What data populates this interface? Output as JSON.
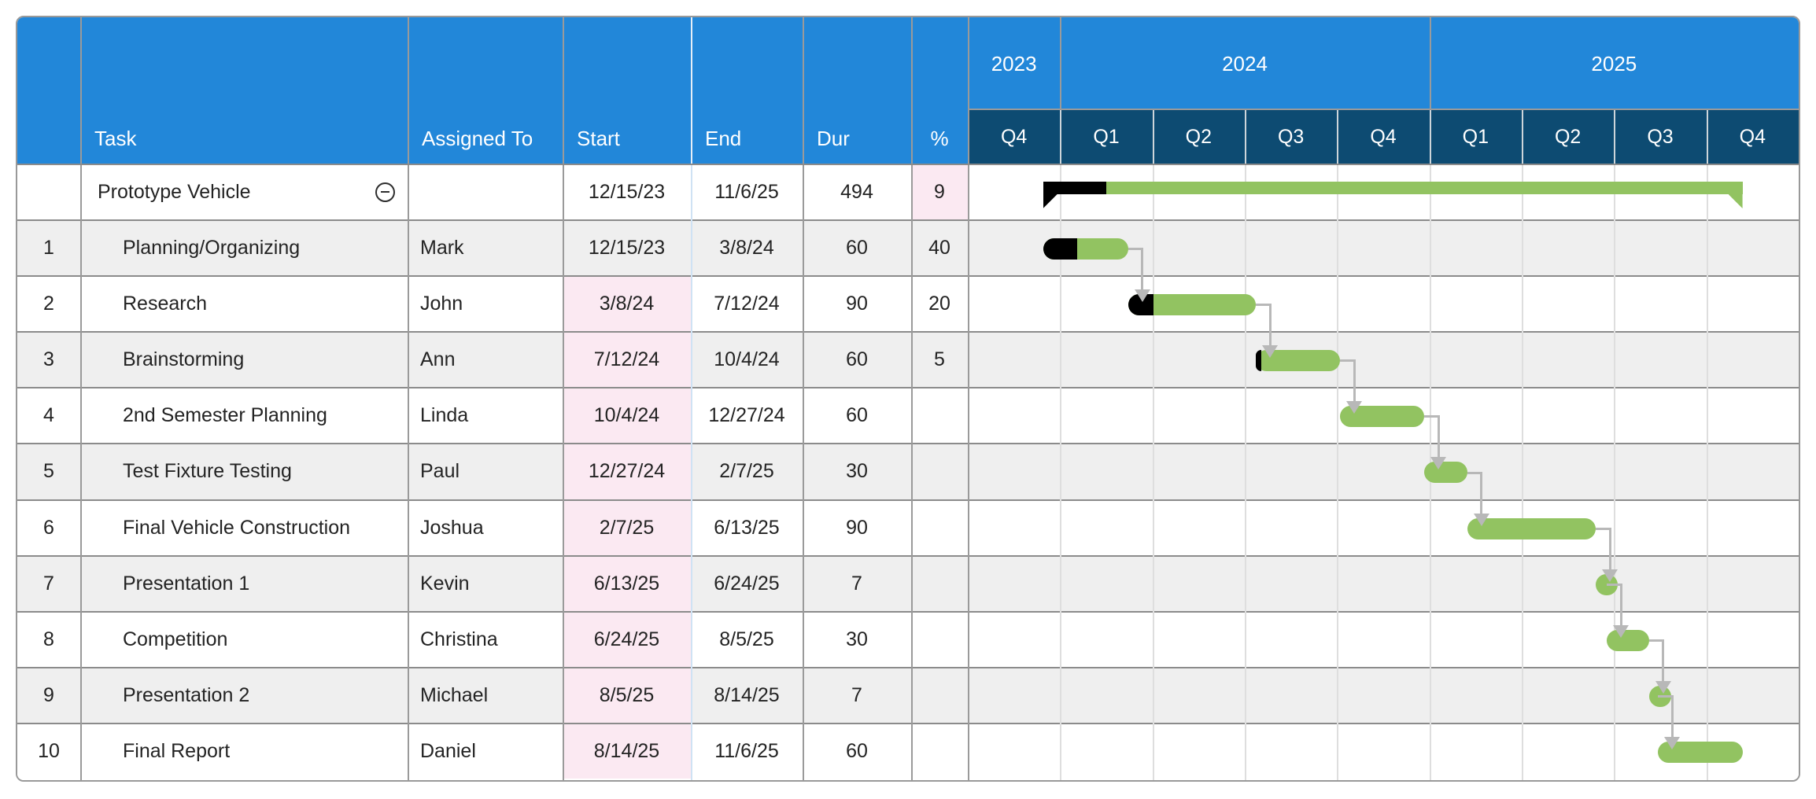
{
  "colors": {
    "header_blue": "#2287d9",
    "quarter_navy": "#0d4b72",
    "bar_green": "#92c361",
    "bar_complete_black": "#000000",
    "highlight_pink": "#fbe9f2",
    "row_alt_gray": "#efefef",
    "row_white": "#ffffff",
    "row_border_gray": "#8b8b8b",
    "column_border_gray": "#9a9a9a",
    "timeline_gridline": "#dedede",
    "start_end_divider_blue": "#cfe2f4",
    "connector_gray": "#b8b8b8",
    "outer_border": "#999999"
  },
  "header": {
    "columns": [
      {
        "key": "row_num",
        "label": ""
      },
      {
        "key": "task",
        "label": "Task"
      },
      {
        "key": "assigned",
        "label": "Assigned To"
      },
      {
        "key": "start",
        "label": "Start"
      },
      {
        "key": "end",
        "label": "End"
      },
      {
        "key": "dur",
        "label": "Dur"
      },
      {
        "key": "pct",
        "label": "%"
      }
    ],
    "years": [
      {
        "label": "2023",
        "quarters": [
          "Q4"
        ]
      },
      {
        "label": "2024",
        "quarters": [
          "Q1",
          "Q2",
          "Q3",
          "Q4"
        ]
      },
      {
        "label": "2025",
        "quarters": [
          "Q1",
          "Q2",
          "Q3",
          "Q4"
        ]
      }
    ],
    "quarter_cells": [
      "Q4",
      "Q1",
      "Q2",
      "Q3",
      "Q4",
      "Q1",
      "Q2",
      "Q3",
      "Q4"
    ]
  },
  "chart_data": {
    "type": "table",
    "subtype": "gantt-timeline",
    "timeline_start": "2023-10-01",
    "timeline_end": "2026-01-01",
    "quarter_labels": [
      "2023 Q4",
      "2024 Q1",
      "2024 Q2",
      "2024 Q3",
      "2024 Q4",
      "2025 Q1",
      "2025 Q2",
      "2025 Q3",
      "2025 Q4"
    ],
    "tasks": [
      {
        "row_num": "",
        "name": "Prototype Vehicle",
        "assigned": "",
        "start": "12/15/23",
        "end": "11/6/25",
        "dur": "494",
        "pct": "9",
        "start_iso": "2023-12-15",
        "end_iso": "2025-11-06",
        "pct_complete": 9,
        "is_summary": true,
        "start_highlight": false,
        "pct_highlight": true,
        "collapse_icon": "minus-circle"
      },
      {
        "row_num": "1",
        "name": "Planning/Organizing",
        "assigned": "Mark",
        "start": "12/15/23",
        "end": "3/8/24",
        "dur": "60",
        "pct": "40",
        "start_iso": "2023-12-15",
        "end_iso": "2024-03-08",
        "pct_complete": 40,
        "is_summary": false,
        "start_highlight": false,
        "pct_highlight": false
      },
      {
        "row_num": "2",
        "name": "Research",
        "assigned": "John",
        "start": "3/8/24",
        "end": "7/12/24",
        "dur": "90",
        "pct": "20",
        "start_iso": "2024-03-08",
        "end_iso": "2024-07-12",
        "pct_complete": 20,
        "is_summary": false,
        "start_highlight": true,
        "pct_highlight": false
      },
      {
        "row_num": "3",
        "name": "Brainstorming",
        "assigned": "Ann",
        "start": "7/12/24",
        "end": "10/4/24",
        "dur": "60",
        "pct": "5",
        "start_iso": "2024-07-12",
        "end_iso": "2024-10-04",
        "pct_complete": 5,
        "is_summary": false,
        "start_highlight": true,
        "pct_highlight": false
      },
      {
        "row_num": "4",
        "name": "2nd Semester Planning",
        "assigned": "Linda",
        "start": "10/4/24",
        "end": "12/27/24",
        "dur": "60",
        "pct": "",
        "start_iso": "2024-10-04",
        "end_iso": "2024-12-27",
        "pct_complete": 0,
        "is_summary": false,
        "start_highlight": true,
        "pct_highlight": false
      },
      {
        "row_num": "5",
        "name": "Test Fixture Testing",
        "assigned": "Paul",
        "start": "12/27/24",
        "end": "2/7/25",
        "dur": "30",
        "pct": "",
        "start_iso": "2024-12-27",
        "end_iso": "2025-02-07",
        "pct_complete": 0,
        "is_summary": false,
        "start_highlight": true,
        "pct_highlight": false
      },
      {
        "row_num": "6",
        "name": "Final Vehicle Construction",
        "assigned": "Joshua",
        "start": "2/7/25",
        "end": "6/13/25",
        "dur": "90",
        "pct": "",
        "start_iso": "2025-02-07",
        "end_iso": "2025-06-13",
        "pct_complete": 0,
        "is_summary": false,
        "start_highlight": true,
        "pct_highlight": false
      },
      {
        "row_num": "7",
        "name": "Presentation 1",
        "assigned": "Kevin",
        "start": "6/13/25",
        "end": "6/24/25",
        "dur": "7",
        "pct": "",
        "start_iso": "2025-06-13",
        "end_iso": "2025-06-24",
        "pct_complete": 0,
        "is_summary": false,
        "start_highlight": true,
        "pct_highlight": false
      },
      {
        "row_num": "8",
        "name": "Competition",
        "assigned": "Christina",
        "start": "6/24/25",
        "end": "8/5/25",
        "dur": "30",
        "pct": "",
        "start_iso": "2025-06-24",
        "end_iso": "2025-08-05",
        "pct_complete": 0,
        "is_summary": false,
        "start_highlight": true,
        "pct_highlight": false
      },
      {
        "row_num": "9",
        "name": "Presentation 2",
        "assigned": "Michael",
        "start": "8/5/25",
        "end": "8/14/25",
        "dur": "7",
        "pct": "",
        "start_iso": "2025-08-05",
        "end_iso": "2025-08-14",
        "pct_complete": 0,
        "is_summary": false,
        "start_highlight": true,
        "pct_highlight": false
      },
      {
        "row_num": "10",
        "name": "Final Report",
        "assigned": "Daniel",
        "start": "8/14/25",
        "end": "11/6/25",
        "dur": "60",
        "pct": "",
        "start_iso": "2025-08-14",
        "end_iso": "2025-11-06",
        "pct_complete": 0,
        "is_summary": false,
        "start_highlight": true,
        "pct_highlight": false
      }
    ],
    "dependencies": [
      [
        1,
        2
      ],
      [
        2,
        3
      ],
      [
        3,
        4
      ],
      [
        4,
        5
      ],
      [
        5,
        6
      ],
      [
        6,
        7
      ],
      [
        7,
        8
      ],
      [
        8,
        9
      ],
      [
        9,
        10
      ]
    ]
  }
}
